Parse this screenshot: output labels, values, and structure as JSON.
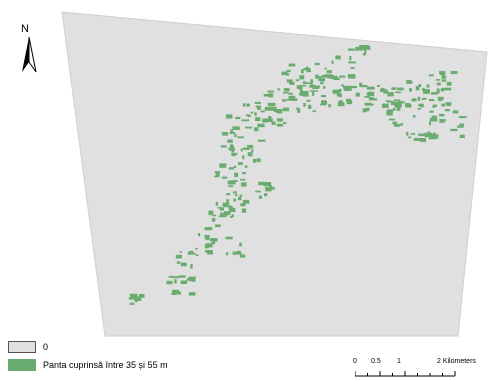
{
  "map": {
    "north_label": "N",
    "colors": {
      "background_area": "#e0e0e0",
      "slope_class": "#6aac6f"
    }
  },
  "legend": {
    "items": [
      {
        "label": "0",
        "color": "#e0e0e0"
      },
      {
        "label": "Panta cuprinsă între 35 și 55 m",
        "color": "#6aac6f"
      }
    ]
  },
  "scalebar": {
    "labels": [
      "0",
      "0.5",
      "1",
      "2 Kilometers"
    ]
  }
}
